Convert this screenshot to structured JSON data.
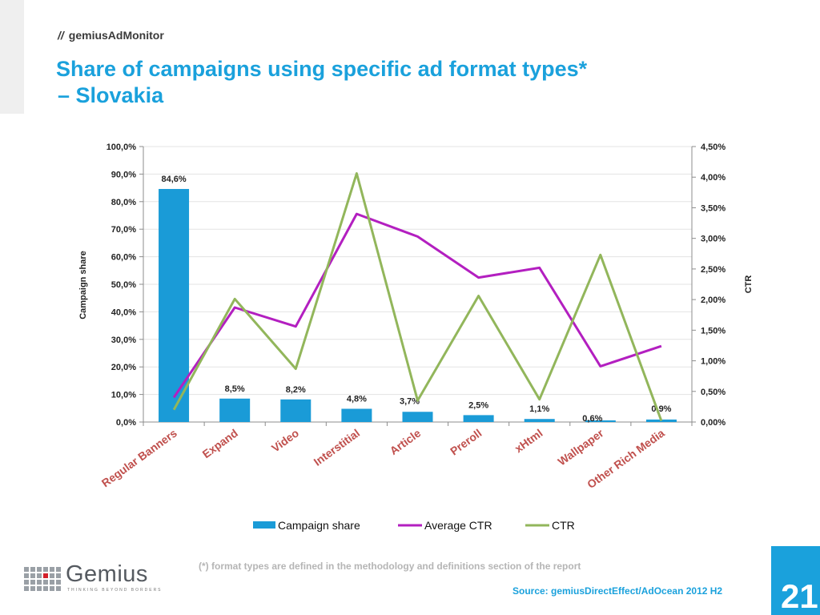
{
  "header": {
    "slashes": "//",
    "brand": "gemiusAdMonitor",
    "title_line1": "Share of campaigns using specific ad format types*",
    "title_line2": "– Slovakia"
  },
  "chart_data": {
    "type": "bar",
    "categories": [
      "Regular Banners",
      "Expand",
      "Video",
      "Interstitial",
      "Article",
      "Preroll",
      "xHtml",
      "Wallpaper",
      "Other Rich Media"
    ],
    "series": [
      {
        "name": "Campaign share",
        "kind": "bar",
        "axis": "left",
        "color": "#1a9bd7",
        "values": [
          84.6,
          8.5,
          8.2,
          4.8,
          3.7,
          2.5,
          1.1,
          0.6,
          0.9
        ],
        "labels": [
          "84,6%",
          "8,5%",
          "8,2%",
          "4,8%",
          "3,7%",
          "2,5%",
          "1,1%",
          "0,6%",
          "0,9%"
        ]
      },
      {
        "name": "Average CTR",
        "kind": "line",
        "axis": "right",
        "color": "#b31fc0",
        "values": [
          0.4,
          1.87,
          1.56,
          3.4,
          3.03,
          2.36,
          2.52,
          0.91,
          1.24
        ]
      },
      {
        "name": "CTR",
        "kind": "line",
        "axis": "right",
        "color": "#92b65b",
        "values": [
          0.2,
          2.01,
          0.87,
          4.06,
          0.35,
          2.06,
          0.37,
          2.73,
          0.02
        ]
      }
    ],
    "ylabel": "Campaign share",
    "y2label": "CTR",
    "ylim": [
      0,
      100
    ],
    "y2lim": [
      0,
      4.5
    ],
    "yticks": [
      "0,0%",
      "10,0%",
      "20,0%",
      "30,0%",
      "40,0%",
      "50,0%",
      "60,0%",
      "70,0%",
      "80,0%",
      "90,0%",
      "100,0%"
    ],
    "y2ticks": [
      "0,00%",
      "0,50%",
      "1,00%",
      "1,50%",
      "2,00%",
      "2,50%",
      "3,00%",
      "3,50%",
      "4,00%",
      "4,50%"
    ],
    "grid": true,
    "legend_position": "bottom"
  },
  "footer": {
    "footnote": "(*)  format types are defined in the methodology and definitions section of the report",
    "source": "Source: gemiusDirectEffect/AdOcean 2012 H2",
    "page_number": "21",
    "logo_text": "Gemius",
    "logo_tagline": "THINKING BEYOND BORDERS"
  }
}
